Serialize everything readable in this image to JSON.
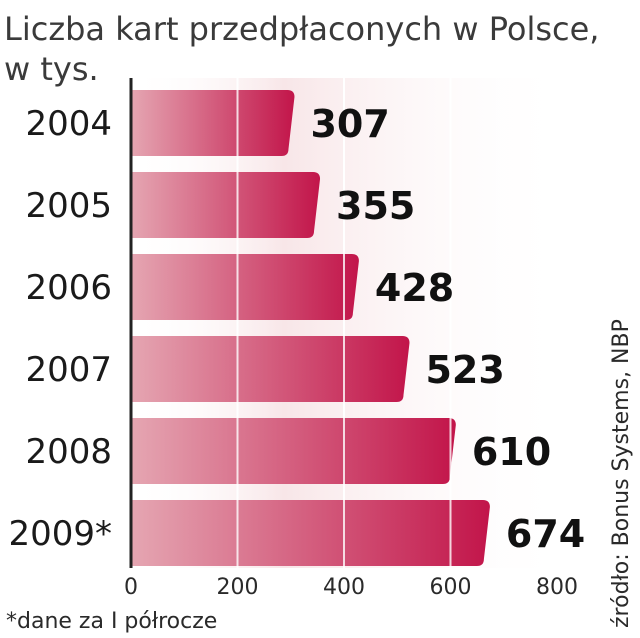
{
  "title_line1": "Liczba kart przedpłaconych w Polsce,",
  "title_line2": "w tys.",
  "footnote": "*dane za I półrocze",
  "source": "źródło: Bonus Systems, NBP",
  "colors": {
    "bar_light": "#e5a6b2",
    "bar_dark": "#c2154a",
    "background_tint": "#f8e6e8",
    "grid": "#ffffff",
    "axis": "#222222"
  },
  "chart_data": {
    "type": "bar",
    "orientation": "horizontal",
    "title": "Liczba kart przedpłaconych w Polsce, w tys.",
    "categories": [
      "2004",
      "2005",
      "2006",
      "2007",
      "2008",
      "2009*"
    ],
    "values": [
      307,
      355,
      428,
      523,
      610,
      674
    ],
    "value_labels": [
      "307",
      "355",
      "428",
      "523",
      "610",
      "674"
    ],
    "xlim": [
      0,
      800
    ],
    "x_ticks": [
      0,
      200,
      400,
      600,
      800
    ],
    "grid": true
  }
}
